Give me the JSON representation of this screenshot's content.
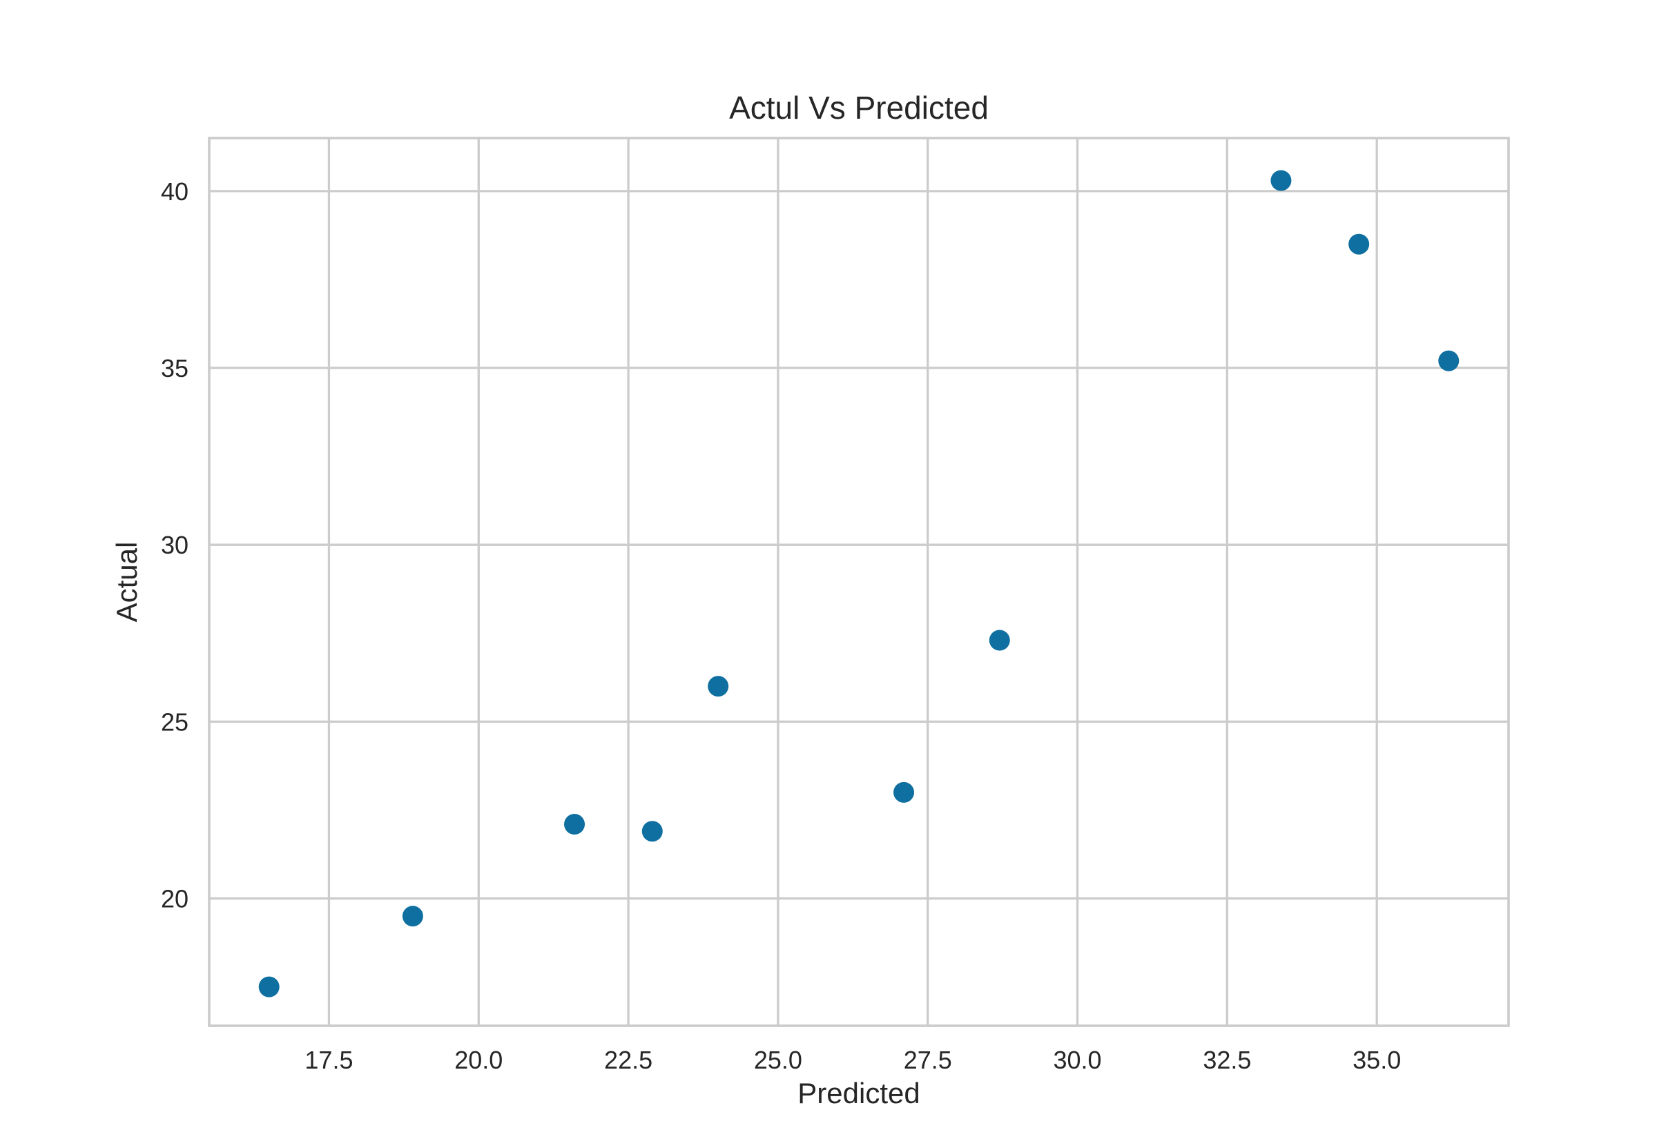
{
  "chart_data": {
    "type": "scatter",
    "title": "Actul Vs Predicted",
    "xlabel": "Predicted",
    "ylabel": "Actual",
    "xlim": [
      15.5,
      37.2
    ],
    "ylim": [
      16.4,
      41.5
    ],
    "xticks": [
      17.5,
      20.0,
      22.5,
      25.0,
      27.5,
      30.0,
      32.5,
      35.0
    ],
    "xtick_labels": [
      "17.5",
      "20.0",
      "22.5",
      "25.0",
      "27.5",
      "30.0",
      "32.5",
      "35.0"
    ],
    "yticks": [
      20,
      25,
      30,
      35,
      40
    ],
    "ytick_labels": [
      "20",
      "25",
      "30",
      "35",
      "40"
    ],
    "grid": true,
    "marker_color": "#0e6fa0",
    "points": [
      {
        "x": 16.5,
        "y": 17.5
      },
      {
        "x": 18.9,
        "y": 19.5
      },
      {
        "x": 21.6,
        "y": 22.1
      },
      {
        "x": 22.9,
        "y": 21.9
      },
      {
        "x": 24.0,
        "y": 26.0
      },
      {
        "x": 27.1,
        "y": 23.0
      },
      {
        "x": 28.7,
        "y": 27.3
      },
      {
        "x": 33.4,
        "y": 40.3
      },
      {
        "x": 34.7,
        "y": 38.5
      },
      {
        "x": 36.2,
        "y": 35.2
      }
    ]
  }
}
